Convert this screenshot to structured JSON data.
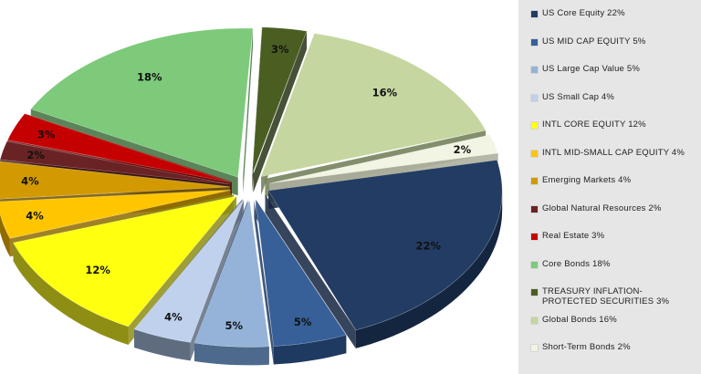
{
  "chart_data": {
    "type": "pie",
    "legend_position": "right",
    "slices": [
      {
        "label": "US Core Equity 22%",
        "value": 22,
        "value_label": "22%",
        "color": "#233c63",
        "side": "#142540"
      },
      {
        "label": "US MID CAP EQUITY 5%",
        "value": 5,
        "value_label": "5%",
        "color": "#375f98",
        "side": "#1f3a60"
      },
      {
        "label": "US Large Cap Value 5%",
        "value": 5,
        "value_label": "5%",
        "color": "#95b3d9",
        "side": "#4d6a8c"
      },
      {
        "label": "US Small Cap 4%",
        "value": 4,
        "value_label": "4%",
        "color": "#bfd1ec",
        "side": "#5f6c80"
      },
      {
        "label": "INTL CORE EQUITY 12%",
        "value": 12,
        "value_label": "12%",
        "color": "#ffff10",
        "side": "#8e8e14"
      },
      {
        "label": "INTL MID-SMALL CAP EQUITY 4%",
        "value": 4,
        "value_label": "4%",
        "color": "#ffc600",
        "side": "#8f6b00"
      },
      {
        "label": "Emerging Markets 4%",
        "value": 4,
        "value_label": "4%",
        "color": "#d29a00",
        "side": "#6e5000"
      },
      {
        "label": "Global Natural Resources 2%",
        "value": 2,
        "value_label": "2%",
        "color": "#6a2324",
        "side": "#3b1212"
      },
      {
        "label": "Real Estate 3%",
        "value": 3,
        "value_label": "3%",
        "color": "#c40000",
        "side": "#700000"
      },
      {
        "label": "Core Bonds 18%",
        "value": 18,
        "value_label": "18%",
        "color": "#7dca7a",
        "side": "#3f6e3c"
      },
      {
        "label": "TREASURY INFLATION-PROTECTED SECURITIES 3%",
        "value": 3,
        "value_label": "3%",
        "color": "#4a5e22",
        "side": "#263214"
      },
      {
        "label": "Global Bonds 16%",
        "value": 16,
        "value_label": "16%",
        "color": "#c5d6a0",
        "side": "#6d7a54"
      },
      {
        "label": "Short-Term Bonds 2%",
        "value": 2,
        "value_label": "2%",
        "color": "#f2f4e4",
        "side": "#a9ab98"
      }
    ]
  }
}
